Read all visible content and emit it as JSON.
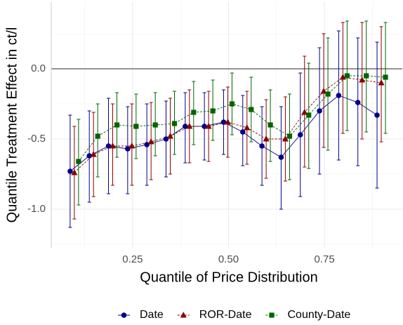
{
  "chart_data": {
    "type": "errorbar-line",
    "x_label": "Quantile of Price Distribution",
    "y_label": "Quantile Treatment Effect in ct/l",
    "x": [
      0.1,
      0.15,
      0.2,
      0.25,
      0.3,
      0.35,
      0.4,
      0.45,
      0.5,
      0.55,
      0.6,
      0.65,
      0.7,
      0.75,
      0.8,
      0.85,
      0.9
    ],
    "xlim": [
      0.038,
      0.953
    ],
    "ylim": [
      -1.275,
      0.475
    ],
    "xticks": [
      0.25,
      {
        "value": 0.5,
        "label": "0.50"
      },
      0.75
    ],
    "yticks": [
      {
        "value": 0,
        "label": "0.0"
      },
      {
        "value": -0.5,
        "label": "-0.5"
      },
      {
        "value": -1,
        "label": "-1.0"
      }
    ],
    "minor_xticks": [
      0.125,
      0.375,
      0.625,
      0.875
    ],
    "minor_yticks": [
      0.25,
      -0.25,
      -0.75,
      -1.25
    ],
    "hline": 0,
    "grid": true,
    "legend": "bottom",
    "series": [
      {
        "name": "Date",
        "color": "#00008b",
        "marker": "circle",
        "linestyle": "solid",
        "values": [
          -0.73,
          -0.62,
          -0.55,
          -0.57,
          -0.54,
          -0.5,
          -0.41,
          -0.41,
          -0.38,
          -0.45,
          -0.55,
          -0.63,
          -0.47,
          -0.3,
          -0.19,
          -0.24,
          -0.33
        ],
        "lower": [
          -1.13,
          -0.95,
          -0.89,
          -0.89,
          -0.83,
          -0.77,
          -0.67,
          -0.65,
          -0.61,
          -0.69,
          -0.83,
          -1.0,
          -0.91,
          -0.75,
          -0.65,
          -0.69,
          -0.85
        ],
        "upper": [
          -0.33,
          -0.3,
          -0.21,
          -0.27,
          -0.25,
          -0.23,
          -0.17,
          -0.17,
          -0.15,
          -0.19,
          -0.27,
          -0.27,
          -0.03,
          0.15,
          0.27,
          0.22,
          0.19
        ]
      },
      {
        "name": "ROR-Date",
        "color": "#8b0000",
        "marker": "triangle",
        "linestyle": "dashed",
        "values": [
          -0.74,
          -0.61,
          -0.55,
          -0.55,
          -0.52,
          -0.48,
          -0.41,
          -0.41,
          -0.38,
          -0.42,
          -0.5,
          -0.5,
          -0.31,
          -0.16,
          -0.06,
          -0.08,
          -0.1
        ],
        "lower": [
          -1.07,
          -0.91,
          -0.83,
          -0.83,
          -0.79,
          -0.75,
          -0.67,
          -0.66,
          -0.63,
          -0.68,
          -0.78,
          -0.8,
          -0.7,
          -0.56,
          -0.46,
          -0.5,
          -0.52
        ],
        "upper": [
          -0.41,
          -0.31,
          -0.25,
          -0.25,
          -0.24,
          -0.21,
          -0.15,
          -0.16,
          -0.13,
          -0.16,
          -0.22,
          -0.2,
          0.09,
          0.25,
          0.33,
          0.33,
          0.3
        ]
      },
      {
        "name": "County-Date",
        "color": "#006400",
        "marker": "square",
        "linestyle": "dashed",
        "values": [
          -0.66,
          -0.48,
          -0.4,
          -0.41,
          -0.4,
          -0.39,
          -0.31,
          -0.3,
          -0.25,
          -0.29,
          -0.4,
          -0.48,
          -0.33,
          -0.18,
          -0.05,
          -0.05,
          -0.06
        ],
        "lower": [
          -0.97,
          -0.77,
          -0.63,
          -0.64,
          -0.62,
          -0.61,
          -0.54,
          -0.51,
          -0.47,
          -0.52,
          -0.66,
          -0.79,
          -0.71,
          -0.58,
          -0.44,
          -0.45,
          -0.46
        ],
        "upper": [
          -0.36,
          -0.25,
          -0.17,
          -0.18,
          -0.17,
          -0.16,
          -0.09,
          -0.08,
          -0.03,
          -0.06,
          -0.15,
          -0.18,
          0.04,
          0.22,
          0.34,
          0.34,
          0.33
        ]
      }
    ]
  }
}
